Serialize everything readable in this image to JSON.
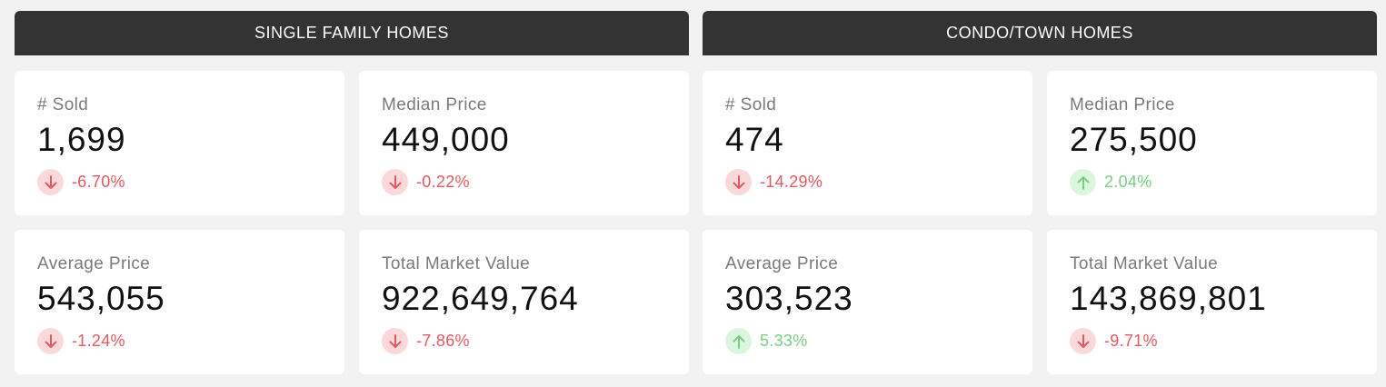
{
  "sections": [
    {
      "title": "SINGLE FAMILY HOMES",
      "cards": [
        {
          "label": "# Sold",
          "value": "1,699",
          "change": "-6.70%",
          "direction": "down"
        },
        {
          "label": "Median Price",
          "value": "449,000",
          "change": "-0.22%",
          "direction": "down"
        },
        {
          "label": "Average Price",
          "value": "543,055",
          "change": "-1.24%",
          "direction": "down"
        },
        {
          "label": "Total Market Value",
          "value": "922,649,764",
          "change": "-7.86%",
          "direction": "down"
        }
      ]
    },
    {
      "title": "CONDO/TOWN HOMES",
      "cards": [
        {
          "label": "# Sold",
          "value": "474",
          "change": "-14.29%",
          "direction": "down"
        },
        {
          "label": "Median Price",
          "value": "275,500",
          "change": "2.04%",
          "direction": "up"
        },
        {
          "label": "Average Price",
          "value": "303,523",
          "change": "5.33%",
          "direction": "up"
        },
        {
          "label": "Total Market Value",
          "value": "143,869,801",
          "change": "-9.71%",
          "direction": "down"
        }
      ]
    }
  ],
  "colors": {
    "down": "#e05a62",
    "up": "#79cf80",
    "header_bg": "#333333"
  }
}
